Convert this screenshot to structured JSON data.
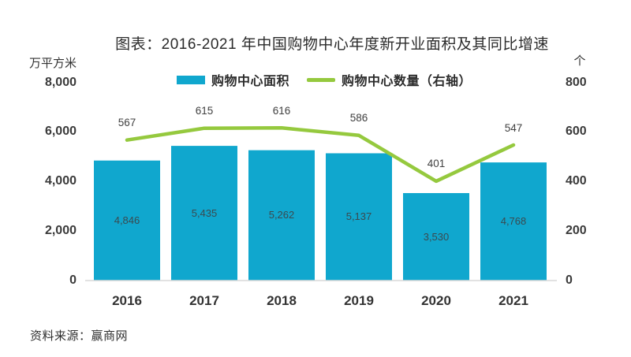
{
  "title": "图表：2016-2021 年中国购物中心年度新开业面积及其同比增速",
  "source": "资料来源：赢商网",
  "colors": {
    "bar": "#10A7CE",
    "line": "#95C93E",
    "axis_line": "#D9D9D9",
    "text": "#3A3A3A"
  },
  "chart_data": {
    "type": "bar+line",
    "title": "图表：2016-2021 年中国购物中心年度新开业面积及其同比增速",
    "categories": [
      "2016",
      "2017",
      "2018",
      "2019",
      "2020",
      "2021"
    ],
    "series": [
      {
        "name": "购物中心面积",
        "type": "bar",
        "axis": "left",
        "color": "#10A7CE",
        "values": [
          4846,
          5435,
          5262,
          5137,
          3530,
          4768
        ],
        "labels": [
          "4,846",
          "5,435",
          "5,262",
          "5,137",
          "3,530",
          "4,768"
        ]
      },
      {
        "name": "购物中心数量（右轴）",
        "type": "line",
        "axis": "right",
        "color": "#95C93E",
        "values": [
          567,
          615,
          616,
          586,
          401,
          547
        ],
        "labels": [
          "567",
          "615",
          "616",
          "586",
          "401",
          "547"
        ]
      }
    ],
    "left_axis": {
      "unit": "万平方米",
      "min": 0,
      "max": 8000,
      "step": 2000,
      "tick_labels": [
        "0",
        "2,000",
        "4,000",
        "6,000",
        "8,000"
      ]
    },
    "right_axis": {
      "unit": "个",
      "min": 0,
      "max": 800,
      "step": 200,
      "tick_labels": [
        "0",
        "200",
        "400",
        "600",
        "800"
      ]
    },
    "legend_position": "top",
    "grid": false
  }
}
